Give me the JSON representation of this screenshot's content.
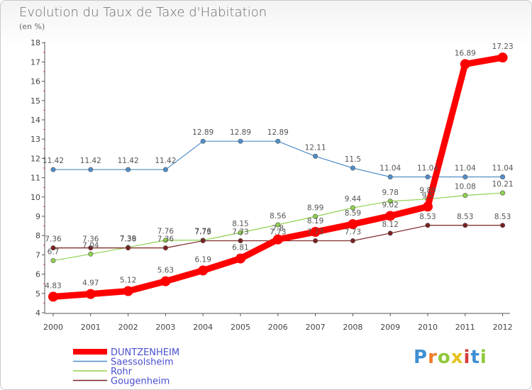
{
  "title": "Evolution du Taux de Taxe d'Habitation",
  "subtitle": "(en %)",
  "logo": "Proxiti",
  "chart_data": {
    "type": "line",
    "title": "Evolution du Taux de Taxe d'Habitation",
    "ylabel": "(en %)",
    "x": [
      "2000",
      "2001",
      "2002",
      "2003",
      "2004",
      "2005",
      "2006",
      "2007",
      "2008",
      "2009",
      "2010",
      "2011",
      "2012"
    ],
    "ylim": [
      4,
      18
    ],
    "yticks": [
      "4",
      "5",
      "6",
      "7",
      "8",
      "9",
      "10",
      "11",
      "12",
      "13",
      "14",
      "15",
      "16",
      "17",
      "18"
    ],
    "grid": false,
    "legend": "bottom-left",
    "series": [
      {
        "name": "DUNTZENHEIM",
        "color": "#ff0000",
        "values": [
          4.83,
          4.97,
          5.12,
          5.63,
          6.19,
          6.81,
          7.8,
          8.19,
          8.59,
          9.02,
          9.5,
          16.89,
          17.23
        ],
        "labels": [
          "4.83",
          "4.97",
          "5.12",
          "5.63",
          "6.19",
          "6.81",
          "7.8",
          "8.19",
          "8.59",
          "9.02",
          "9.5",
          "16.89",
          "17.23"
        ]
      },
      {
        "name": "Saessolsheim",
        "color": "#4f8ec9",
        "values": [
          11.42,
          11.42,
          11.42,
          11.42,
          12.89,
          12.89,
          12.89,
          12.11,
          11.5,
          11.04,
          11.04,
          11.04,
          11.04
        ],
        "labels": [
          "11.42",
          "11.42",
          "11.42",
          "11.42",
          "12.89",
          "12.89",
          "12.89",
          "12.11",
          "11.5",
          "11.04",
          "11.04",
          "11.04",
          "11.04"
        ]
      },
      {
        "name": "Rohr",
        "color": "#8fd14f",
        "values": [
          6.7,
          7.04,
          7.39,
          7.76,
          7.76,
          8.15,
          8.56,
          8.99,
          9.44,
          9.78,
          9.89,
          10.08,
          10.21
        ],
        "labels": [
          "6.7",
          "7.04",
          "7.39",
          "7.76",
          "7.76",
          "8.15",
          "8.56",
          "8.99",
          "9.44",
          "9.78",
          "9.89",
          "10.08",
          "10.21"
        ]
      },
      {
        "name": "Gougenheim",
        "color": "#7a2020",
        "values": [
          7.36,
          7.36,
          7.36,
          7.36,
          7.73,
          7.73,
          7.73,
          7.73,
          7.73,
          8.12,
          8.53,
          8.53,
          8.53
        ],
        "labels": [
          "7.36",
          "7.36",
          "7.36",
          "7.36",
          "7.73",
          "7.73",
          "7.73",
          "7.73",
          "7.73",
          "8.12",
          "8.53",
          "8.53",
          "8.53"
        ]
      }
    ]
  }
}
